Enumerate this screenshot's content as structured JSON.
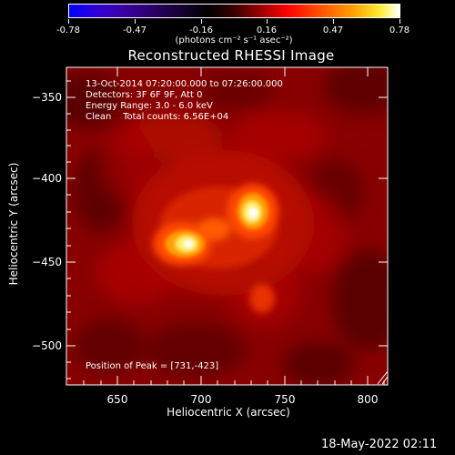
{
  "colorbar": {
    "tick_labels": [
      "-0.78",
      "-0.47",
      "-0.16",
      "0.16",
      "0.47",
      "0.78"
    ],
    "units": "(photons cm⁻² s⁻¹ asec⁻²)"
  },
  "title": "Reconstructed RHESSI Image",
  "x_axis": {
    "label": "Heliocentric X (arcsec)",
    "range": [
      620,
      812
    ],
    "ticks": [
      "650",
      "700",
      "750",
      "800"
    ]
  },
  "y_axis": {
    "label": "Heliocentric Y (arcsec)",
    "range": [
      -524,
      -326
    ],
    "ticks": [
      "−350",
      "−400",
      "−450",
      "−500"
    ]
  },
  "info": {
    "line1": "13-Oct-2014 07:20:00.000 to 07:26:00.000",
    "line2": "Detectors: 3F 6F 9F, Att 0",
    "line3": "Energy Range: 3.0 - 6.0 keV",
    "line4": "Clean    Total counts: 6.56E+04"
  },
  "peak_text": "Position of Peak = [731,-423]",
  "timestamp": "18-May-2022 02:11",
  "colors": {
    "background": "#000000",
    "image_base": "#8a0000",
    "hot": "#ffffff",
    "axis": "#ffffff"
  }
}
